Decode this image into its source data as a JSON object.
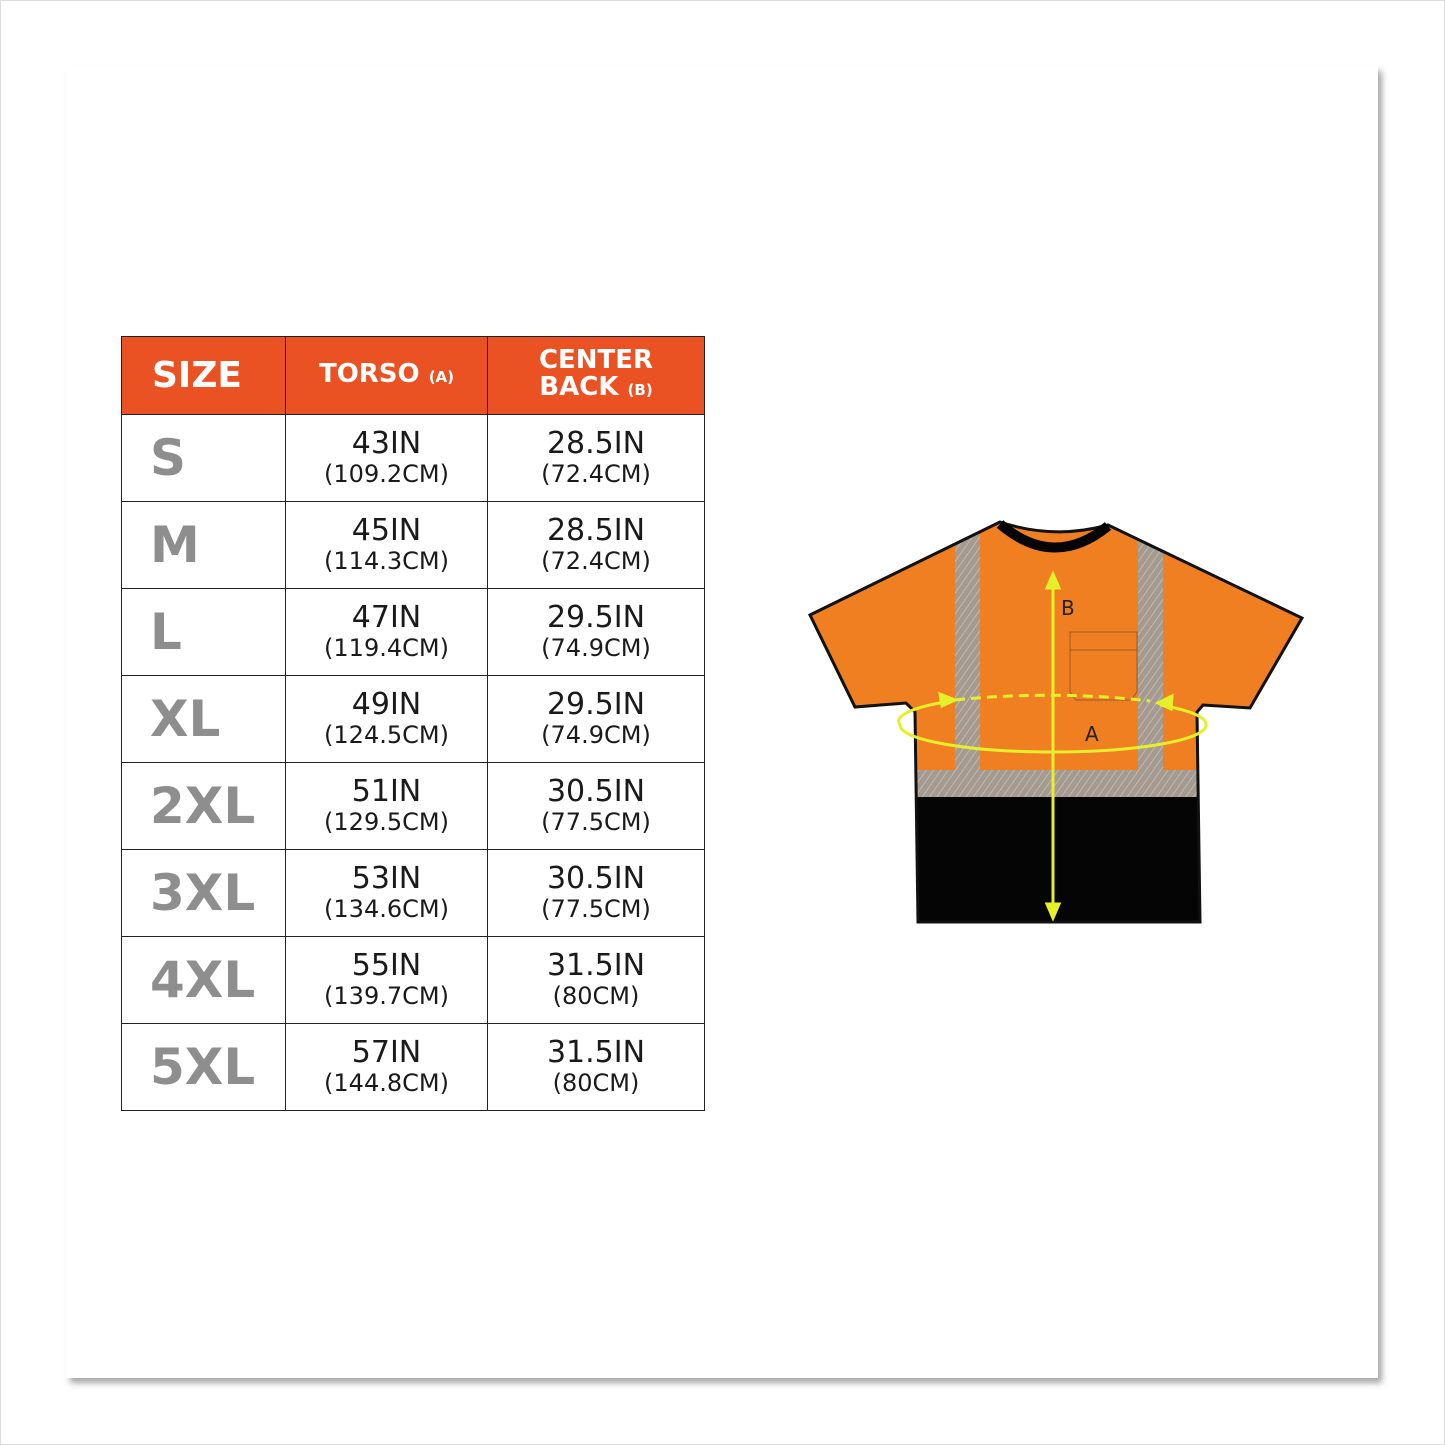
{
  "table": {
    "headers": {
      "size": "SIZE",
      "torso": "TORSO",
      "torso_tag": "(A)",
      "center_back_1": "CENTER",
      "center_back_2": "BACK",
      "center_back_tag": "(B)"
    },
    "rows": [
      {
        "size": "S",
        "torso_in": "43IN",
        "torso_cm": "(109.2CM)",
        "back_in": "28.5IN",
        "back_cm": "(72.4CM)"
      },
      {
        "size": "M",
        "torso_in": "45IN",
        "torso_cm": "(114.3CM)",
        "back_in": "28.5IN",
        "back_cm": "(72.4CM)"
      },
      {
        "size": "L",
        "torso_in": "47IN",
        "torso_cm": "(119.4CM)",
        "back_in": "29.5IN",
        "back_cm": "(74.9CM)"
      },
      {
        "size": "XL",
        "torso_in": "49IN",
        "torso_cm": "(124.5CM)",
        "back_in": "29.5IN",
        "back_cm": "(74.9CM)"
      },
      {
        "size": "2XL",
        "torso_in": "51IN",
        "torso_cm": "(129.5CM)",
        "back_in": "30.5IN",
        "back_cm": "(77.5CM)"
      },
      {
        "size": "3XL",
        "torso_in": "53IN",
        "torso_cm": "(134.6CM)",
        "back_in": "30.5IN",
        "back_cm": "(77.5CM)"
      },
      {
        "size": "4XL",
        "torso_in": "55IN",
        "torso_cm": "(139.7CM)",
        "back_in": "31.5IN",
        "back_cm": "(80CM)"
      },
      {
        "size": "5XL",
        "torso_in": "57IN",
        "torso_cm": "(144.8CM)",
        "back_in": "31.5IN",
        "back_cm": "(80CM)"
      }
    ]
  },
  "diagram": {
    "label_a": "A",
    "label_b": "B"
  },
  "colors": {
    "header": "#ea5224",
    "shirt_orange": "#f07f22",
    "measure_yellow": "#e6f02a",
    "size_gray": "#8e8e8e"
  }
}
